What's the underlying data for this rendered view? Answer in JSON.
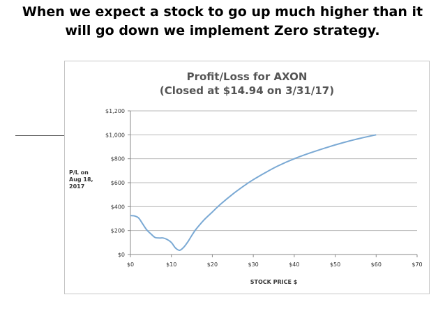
{
  "heading": {
    "line1": "When we expect a stock to go up much higher than it",
    "line2": "will go down we implement Zero strategy."
  },
  "colors": {
    "curve": "#7aa9d4",
    "gridline": "#b8b8b8",
    "axis": "#8a8a8a",
    "title": "#555555"
  },
  "chart_data": {
    "type": "line",
    "title": "Profit/Loss for AXON",
    "subtitle": "(Closed at $14.94 on 3/31/17)",
    "xlabel": "STOCK PRICE $",
    "ylabel": "P/L on\nAug 18,\n2017",
    "xlim": [
      0,
      70
    ],
    "ylim": [
      0,
      1200
    ],
    "x_ticks": [
      0,
      10,
      20,
      30,
      40,
      50,
      60,
      70
    ],
    "x_tick_labels": [
      "$0",
      "$10",
      "$20",
      "$30",
      "$40",
      "$50",
      "$60",
      "$70"
    ],
    "y_ticks": [
      0,
      200,
      400,
      600,
      800,
      1000,
      1200
    ],
    "y_tick_labels": [
      "$0",
      "$200",
      "$400",
      "$600",
      "$800",
      "$1,000",
      "$1,200"
    ],
    "grid": "horizontal",
    "legend": "none",
    "series": [
      {
        "x": [
          0,
          1,
          2,
          3,
          4,
          5,
          6,
          7,
          8,
          9,
          10,
          11,
          12,
          13,
          14,
          15,
          16,
          18,
          20,
          22,
          25,
          28,
          30,
          33,
          36,
          40,
          44,
          48,
          52,
          56,
          60
        ],
        "y": [
          325,
          322,
          305,
          255,
          205,
          172,
          143,
          138,
          138,
          125,
          100,
          55,
          35,
          60,
          105,
          160,
          210,
          290,
          355,
          420,
          505,
          580,
          625,
          685,
          740,
          800,
          850,
          895,
          935,
          970,
          1000
        ]
      }
    ]
  }
}
